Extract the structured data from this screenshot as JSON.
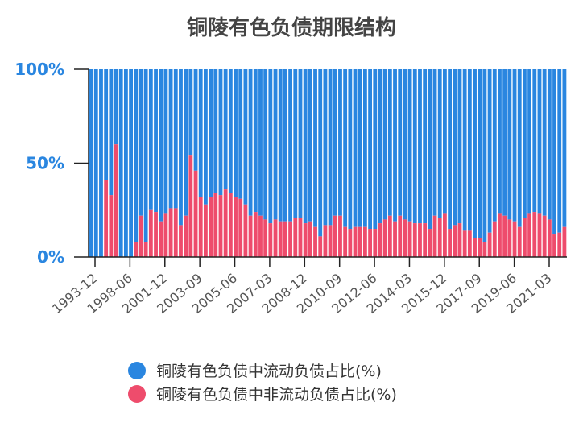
{
  "chart_data": {
    "type": "bar",
    "stacked": true,
    "title": "铜陵有色负债期限结构",
    "ylim": [
      0,
      100
    ],
    "yticks": [
      "0%",
      "50%",
      "100%"
    ],
    "xtick_labels": [
      "1993-12",
      "1998-06",
      "2001-12",
      "2003-09",
      "2005-06",
      "2007-03",
      "2008-12",
      "2010-09",
      "2012-06",
      "2014-03",
      "2015-12",
      "2017-09",
      "2019-06",
      "2021-03"
    ],
    "legend_position": "bottom",
    "colors": {
      "current": "#2a86e0",
      "noncurrent": "#ee4c6c"
    },
    "series": [
      {
        "name": "铜陵有色负债中流动负债占比(%)",
        "key": "current"
      },
      {
        "name": "铜陵有色负债中非流动负债占比(%)",
        "key": "noncurrent"
      }
    ],
    "noncurrent_values": [
      0,
      0,
      0,
      41,
      33,
      60,
      0,
      0,
      0,
      8,
      22,
      8,
      25,
      24,
      19,
      23,
      26,
      26,
      17,
      22,
      54,
      46,
      32,
      28,
      32,
      34,
      33,
      36,
      34,
      32,
      31,
      28,
      22,
      24,
      22,
      20,
      18,
      20,
      19,
      19,
      19,
      21,
      21,
      18,
      19,
      16,
      11,
      17,
      17,
      22,
      22,
      16,
      15,
      16,
      16,
      16,
      15,
      15,
      18,
      20,
      22,
      19,
      22,
      20,
      19,
      18,
      18,
      18,
      15,
      22,
      21,
      23,
      15,
      17,
      18,
      14,
      14,
      10,
      10,
      8,
      13,
      19,
      23,
      22,
      20,
      19,
      16,
      21,
      23,
      24,
      23,
      22,
      20,
      12,
      13,
      16
    ]
  }
}
